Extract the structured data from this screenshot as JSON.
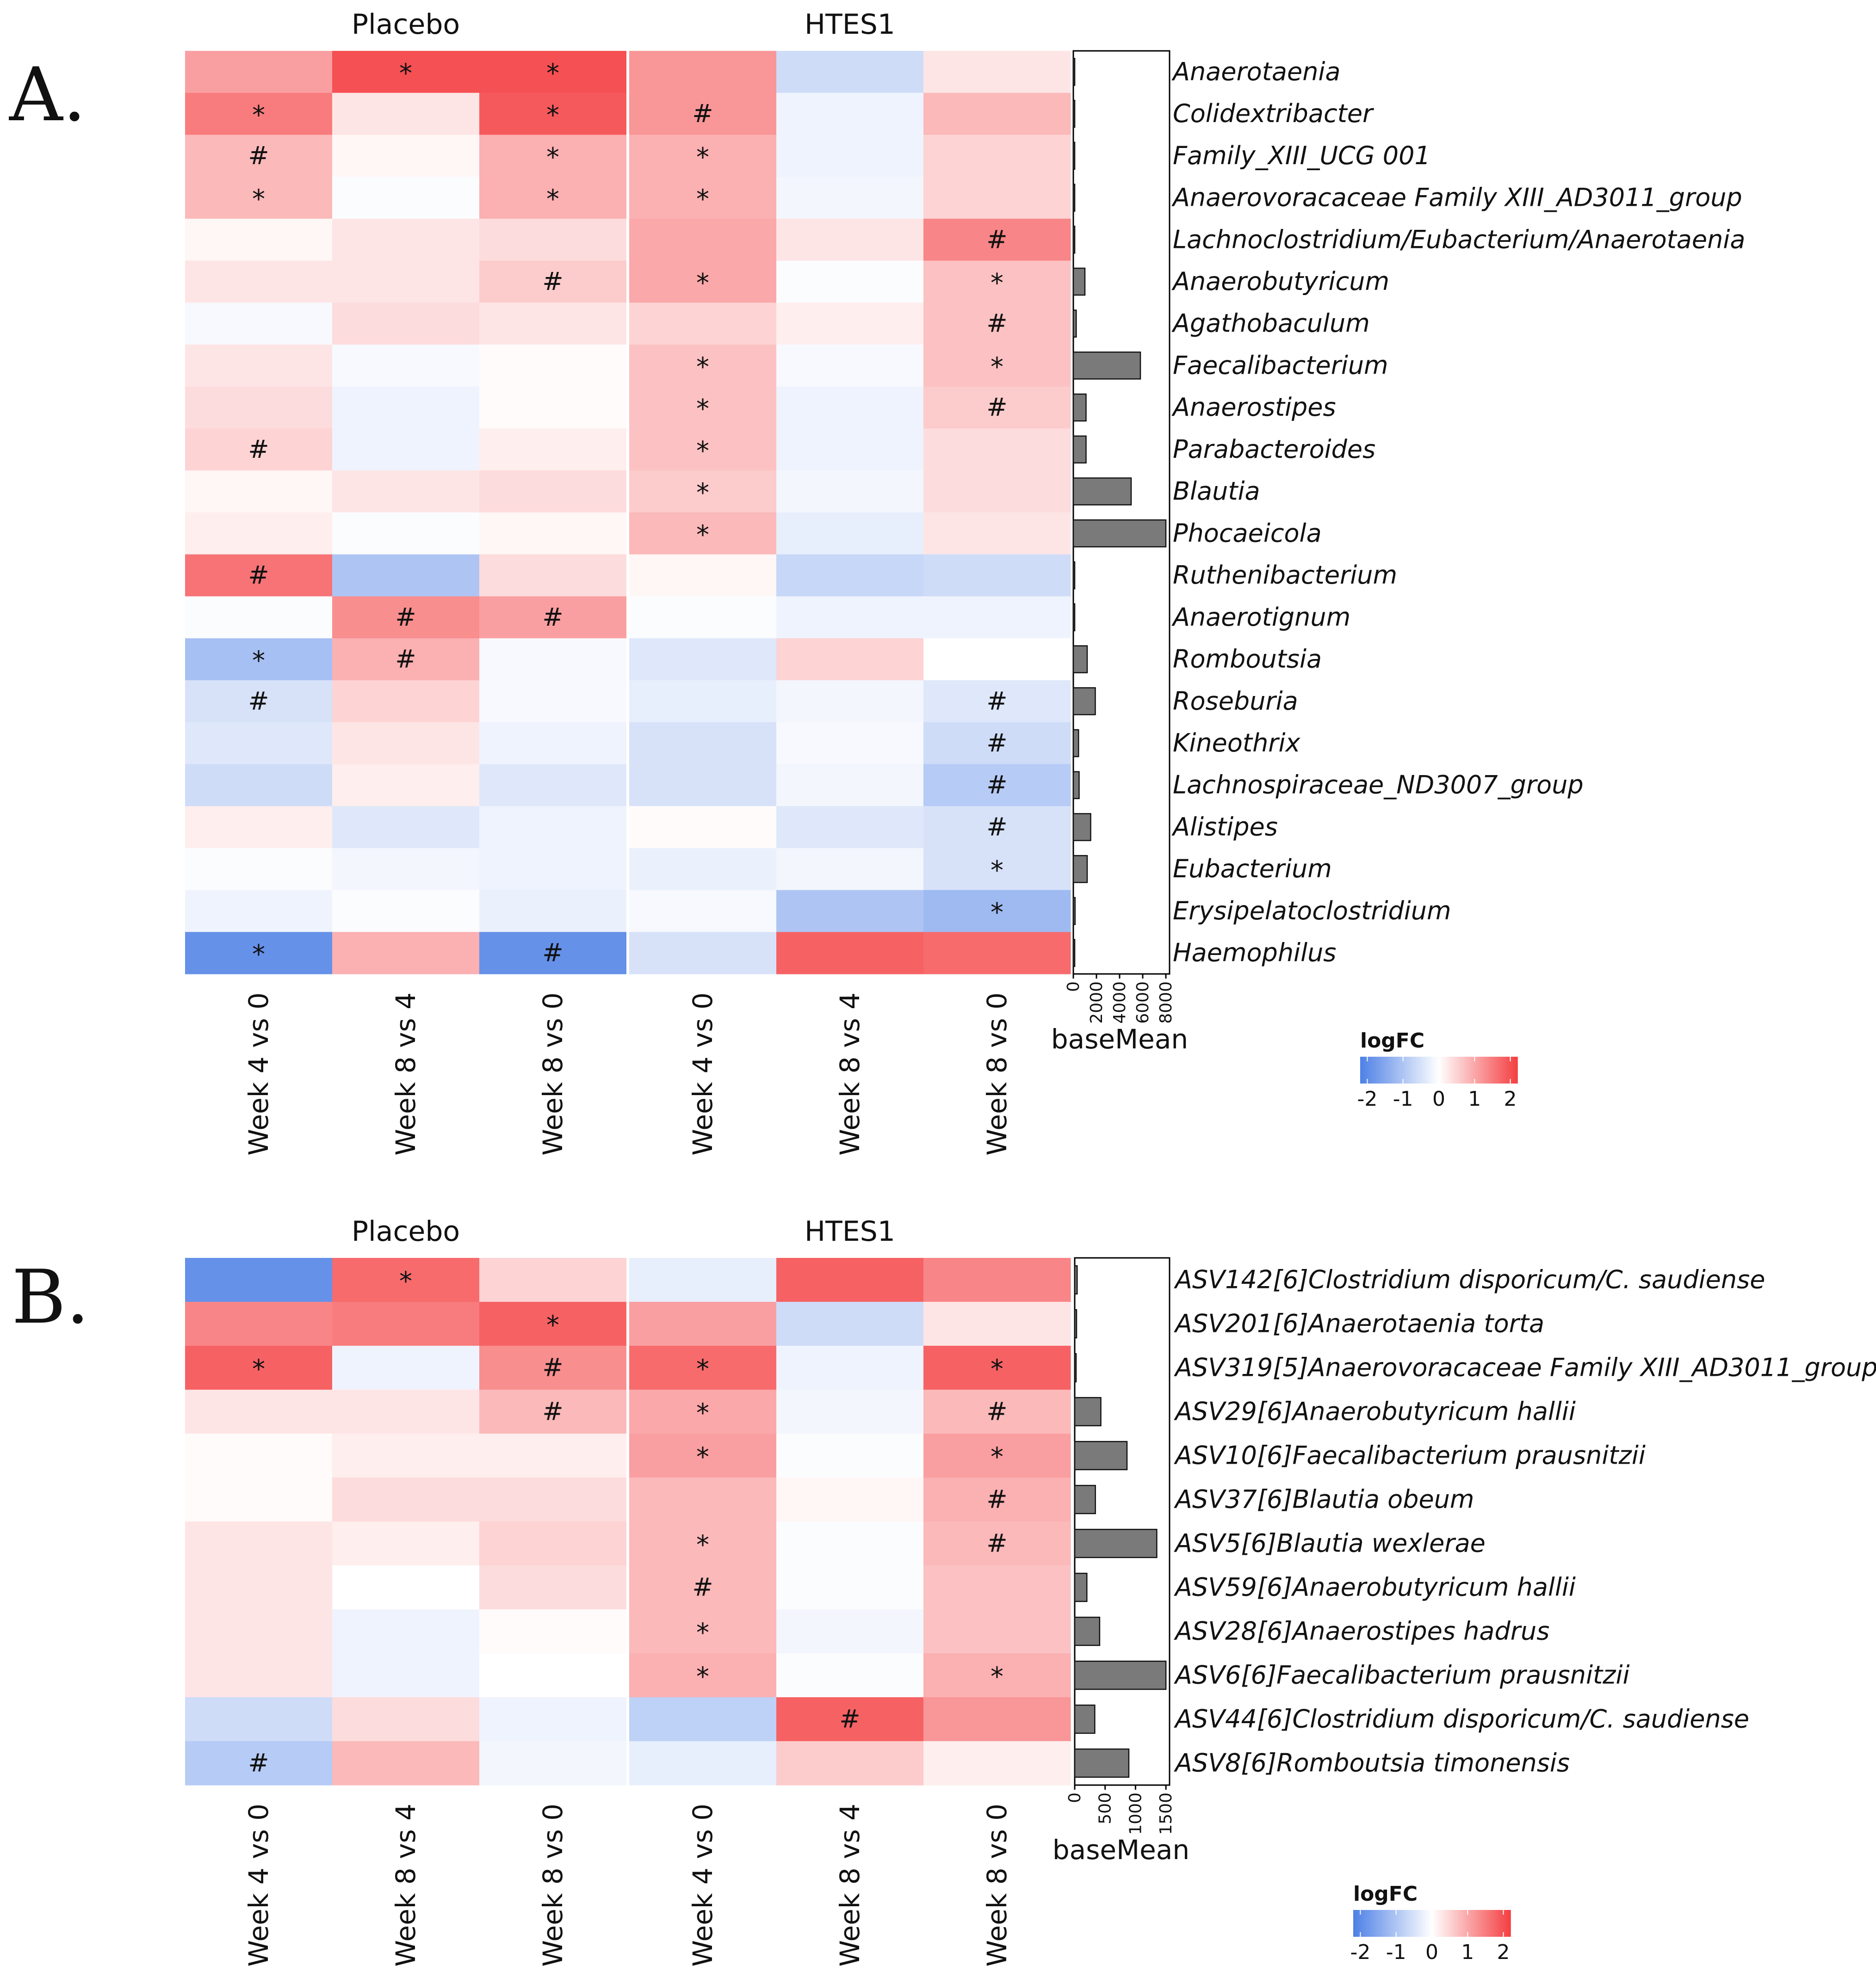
{
  "chart_data": [
    {
      "type": "heatmap",
      "panel_label": "A.",
      "groups": [
        {
          "name": "Placebo",
          "columns": [
            "Week 4 vs 0",
            "Week 8 vs 4",
            "Week 8 vs 0"
          ]
        },
        {
          "name": "HTES1",
          "columns": [
            "Week 4 vs 0",
            "Week 8 vs 4",
            "Week 8 vs 0"
          ]
        }
      ],
      "rows": [
        "Anaerotaenia",
        "Colidextribacter",
        "Family_XIII_UCG 001",
        "Anaerovoracaceae Family XIII_AD3011_group",
        "Lachnoclostridium/Eubacterium/Anaerotaenia",
        "Anaerobutyricum",
        "Agathobaculum",
        "Faecalibacterium",
        "Anaerostipes",
        "Parabacteroides",
        "Blautia",
        "Phocaeicola",
        "Ruthenibacterium",
        "Anaerotignum",
        "Romboutsia",
        "Roseburia",
        "Kineothrix",
        "Lachnospiraceae_ND3007_group",
        "Alistipes",
        "Eubacterium",
        "Erysipelatoclostridium",
        "Haemophilus"
      ],
      "values": [
        [
          1.1,
          2.0,
          2.0,
          1.2,
          -0.6,
          0.3
        ],
        [
          1.5,
          0.3,
          1.9,
          1.2,
          -0.2,
          0.8
        ],
        [
          0.8,
          0.1,
          0.9,
          0.9,
          -0.2,
          0.5
        ],
        [
          0.8,
          -0.05,
          0.9,
          0.9,
          -0.15,
          0.5
        ],
        [
          0.1,
          0.3,
          0.4,
          1.0,
          0.3,
          1.4
        ],
        [
          0.3,
          0.3,
          0.6,
          1.0,
          -0.05,
          0.7
        ],
        [
          -0.1,
          0.4,
          0.3,
          0.5,
          0.2,
          0.7
        ],
        [
          0.3,
          -0.1,
          0.05,
          0.7,
          -0.1,
          0.7
        ],
        [
          0.4,
          -0.2,
          0.05,
          0.7,
          -0.2,
          0.6
        ],
        [
          0.5,
          -0.2,
          0.2,
          0.7,
          -0.2,
          0.4
        ],
        [
          0.1,
          0.3,
          0.4,
          0.6,
          -0.15,
          0.4
        ],
        [
          0.2,
          -0.05,
          0.1,
          0.8,
          -0.3,
          0.3
        ],
        [
          1.6,
          -1.0,
          0.4,
          0.1,
          -0.7,
          -0.6
        ],
        [
          -0.05,
          1.3,
          1.1,
          -0.05,
          -0.2,
          -0.2
        ],
        [
          -1.1,
          0.9,
          -0.1,
          -0.4,
          0.5,
          0.0
        ],
        [
          -0.5,
          0.5,
          -0.1,
          -0.3,
          -0.15,
          -0.4
        ],
        [
          -0.4,
          0.3,
          -0.2,
          -0.5,
          -0.1,
          -0.6
        ],
        [
          -0.6,
          0.2,
          -0.4,
          -0.5,
          -0.15,
          -0.9
        ],
        [
          0.2,
          -0.4,
          -0.2,
          0.05,
          -0.4,
          -0.5
        ],
        [
          -0.05,
          -0.15,
          -0.2,
          -0.25,
          -0.15,
          -0.5
        ],
        [
          -0.2,
          -0.05,
          -0.25,
          -0.1,
          -1.0,
          -1.2
        ],
        [
          -1.9,
          0.9,
          -1.9,
          -0.5,
          1.8,
          1.7
        ]
      ],
      "annotations": [
        [
          "",
          "*",
          "*",
          "",
          "",
          ""
        ],
        [
          "*",
          "",
          "*",
          "#",
          "",
          ""
        ],
        [
          "#",
          "",
          "*",
          "*",
          "",
          ""
        ],
        [
          "*",
          "",
          "*",
          "*",
          "",
          ""
        ],
        [
          "",
          "",
          "",
          "",
          "",
          "#"
        ],
        [
          "",
          "",
          "#",
          "*",
          "",
          "*"
        ],
        [
          "",
          "",
          "",
          "",
          "",
          "#"
        ],
        [
          "",
          "",
          "",
          "*",
          "",
          "*"
        ],
        [
          "",
          "",
          "",
          "*",
          "",
          "#"
        ],
        [
          "#",
          "",
          "",
          "*",
          "",
          ""
        ],
        [
          "",
          "",
          "",
          "*",
          "",
          ""
        ],
        [
          "",
          "",
          "",
          "*",
          "",
          ""
        ],
        [
          "#",
          "",
          "",
          "",
          "",
          ""
        ],
        [
          "",
          "#",
          "#",
          "",
          "",
          ""
        ],
        [
          "*",
          "#",
          "",
          "",
          "",
          ""
        ],
        [
          "#",
          "",
          "",
          "",
          "",
          "#"
        ],
        [
          "",
          "",
          "",
          "",
          "",
          "#"
        ],
        [
          "",
          "",
          "",
          "",
          "",
          "#"
        ],
        [
          "",
          "",
          "",
          "",
          "",
          "#"
        ],
        [
          "",
          "",
          "",
          "",
          "",
          "*"
        ],
        [
          "",
          "",
          "",
          "",
          "",
          "*"
        ],
        [
          "*",
          "",
          "#",
          "",
          "",
          ""
        ]
      ],
      "baseMean": {
        "label": "baseMean",
        "values": [
          20,
          30,
          20,
          25,
          120,
          1000,
          250,
          5800,
          1100,
          1100,
          5000,
          8000,
          20,
          30,
          1200,
          1900,
          450,
          500,
          1500,
          1200,
          150,
          30
        ],
        "ticks": [
          0,
          2000,
          4000,
          6000,
          8000
        ],
        "max": 8200
      },
      "legend": {
        "title": "logFC",
        "ticks": [
          -2,
          -1,
          0,
          1,
          2
        ],
        "range": [
          -2.2,
          2.2
        ]
      }
    },
    {
      "type": "heatmap",
      "panel_label": "B.",
      "groups": [
        {
          "name": "Placebo",
          "columns": [
            "Week 4 vs 0",
            "Week 8 vs 4",
            "Week 8 vs 0"
          ]
        },
        {
          "name": "HTES1",
          "columns": [
            "Week 4 vs 0",
            "Week 8 vs 4",
            "Week 8 vs 0"
          ]
        }
      ],
      "rows": [
        "ASV142[6]Clostridium disporicum/C. saudiense",
        "ASV201[6]Anaerotaenia torta",
        "ASV319[5]Anaerovoracaceae Family XIII_AD3011_group",
        "ASV29[6]Anaerobutyricum hallii",
        "ASV10[6]Faecalibacterium prausnitzii",
        "ASV37[6]Blautia obeum",
        "ASV5[6]Blautia wexlerae",
        "ASV59[6]Anaerobutyricum hallii",
        "ASV28[6]Anaerostipes hadrus",
        "ASV6[6]Faecalibacterium prausnitzii",
        "ASV44[6]Clostridium disporicum/C. saudiense",
        "ASV8[6]Romboutsia timonensis"
      ],
      "values": [
        [
          -1.9,
          1.7,
          0.5,
          -0.3,
          1.8,
          1.4
        ],
        [
          1.4,
          1.5,
          1.8,
          1.1,
          -0.6,
          0.3
        ],
        [
          1.8,
          -0.2,
          1.3,
          1.7,
          -0.2,
          1.8
        ],
        [
          0.3,
          0.3,
          0.8,
          1.0,
          -0.15,
          0.8
        ],
        [
          0.05,
          0.2,
          0.2,
          1.1,
          -0.05,
          1.1
        ],
        [
          0.05,
          0.4,
          0.4,
          0.8,
          0.1,
          0.9
        ],
        [
          0.3,
          0.2,
          0.5,
          0.8,
          -0.05,
          0.8
        ],
        [
          0.3,
          0.0,
          0.4,
          0.8,
          -0.05,
          0.7
        ],
        [
          0.3,
          -0.2,
          0.05,
          0.8,
          -0.15,
          0.7
        ],
        [
          0.3,
          -0.2,
          0.0,
          0.9,
          -0.05,
          0.9
        ],
        [
          -0.6,
          0.4,
          -0.2,
          -0.8,
          1.8,
          1.2
        ],
        [
          -0.9,
          0.8,
          -0.15,
          -0.3,
          0.6,
          0.2
        ]
      ],
      "annotations": [
        [
          "",
          "*",
          "",
          "",
          "",
          ""
        ],
        [
          "",
          "",
          "*",
          "",
          "",
          ""
        ],
        [
          "*",
          "",
          "#",
          "*",
          "",
          "*"
        ],
        [
          "",
          "",
          "#",
          "*",
          "",
          "#"
        ],
        [
          "",
          "",
          "",
          "*",
          "",
          "*"
        ],
        [
          "",
          "",
          "",
          "",
          "",
          "#"
        ],
        [
          "",
          "",
          "",
          "*",
          "",
          "#"
        ],
        [
          "",
          "",
          "",
          "#",
          "",
          ""
        ],
        [
          "",
          "",
          "",
          "*",
          "",
          ""
        ],
        [
          "",
          "",
          "",
          "*",
          "",
          "*"
        ],
        [
          "",
          "",
          "",
          "",
          "#",
          ""
        ],
        [
          "#",
          "",
          "",
          "",
          "",
          ""
        ]
      ],
      "baseMean": {
        "label": "baseMean",
        "values": [
          40,
          30,
          20,
          430,
          860,
          340,
          1350,
          200,
          410,
          1500,
          330,
          890
        ],
        "ticks": [
          0,
          500,
          1000,
          1500
        ],
        "max": 1560
      },
      "legend": {
        "title": "logFC",
        "ticks": [
          -2,
          -1,
          0,
          1,
          2
        ],
        "range": [
          -2.2,
          2.2
        ]
      }
    }
  ]
}
